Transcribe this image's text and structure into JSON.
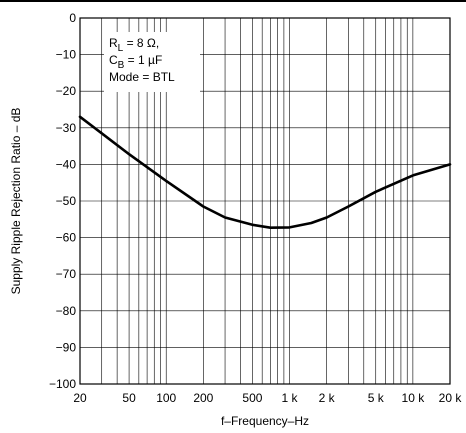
{
  "chart_data": {
    "type": "line",
    "title": "",
    "xlabel": "f–Frequency–Hz",
    "ylabel": "Supply Ripple Rejection Ratio – dB",
    "xscale": "log",
    "xlim": [
      20,
      20000
    ],
    "ylim": [
      -100,
      0
    ],
    "grid": true,
    "x_ticks": [
      20,
      50,
      100,
      200,
      500,
      1000,
      2000,
      5000,
      10000,
      20000
    ],
    "x_tick_labels": [
      "20",
      "50",
      "100",
      "200",
      "500",
      "1 k",
      "2 k",
      "5 k",
      "10 k",
      "20 k"
    ],
    "y_ticks": [
      0,
      -10,
      -20,
      -30,
      -40,
      -50,
      -60,
      -70,
      -80,
      -90,
      -100
    ],
    "y_tick_labels": [
      "0",
      "−10",
      "−20",
      "−30",
      "−40",
      "−50",
      "−60",
      "−70",
      "−80",
      "−90",
      "−100"
    ],
    "annotation_lines": [
      {
        "main": "R",
        "sub": "L",
        "rest": " = 8 Ω,"
      },
      {
        "main": "C",
        "sub": "B",
        "rest": " = 1 µF"
      },
      {
        "main": "Mode = BTL",
        "sub": "",
        "rest": ""
      }
    ],
    "series": [
      {
        "x": [
          20,
          30,
          50,
          100,
          200,
          300,
          500,
          700,
          1000,
          1500,
          2000,
          3000,
          5000,
          10000,
          20000
        ],
        "y": [
          -27,
          -31.5,
          -37.2,
          -44.5,
          -51.5,
          -54.5,
          -56.5,
          -57.3,
          -57.2,
          -56,
          -54.5,
          -51.5,
          -47.5,
          -43,
          -40
        ]
      }
    ]
  }
}
